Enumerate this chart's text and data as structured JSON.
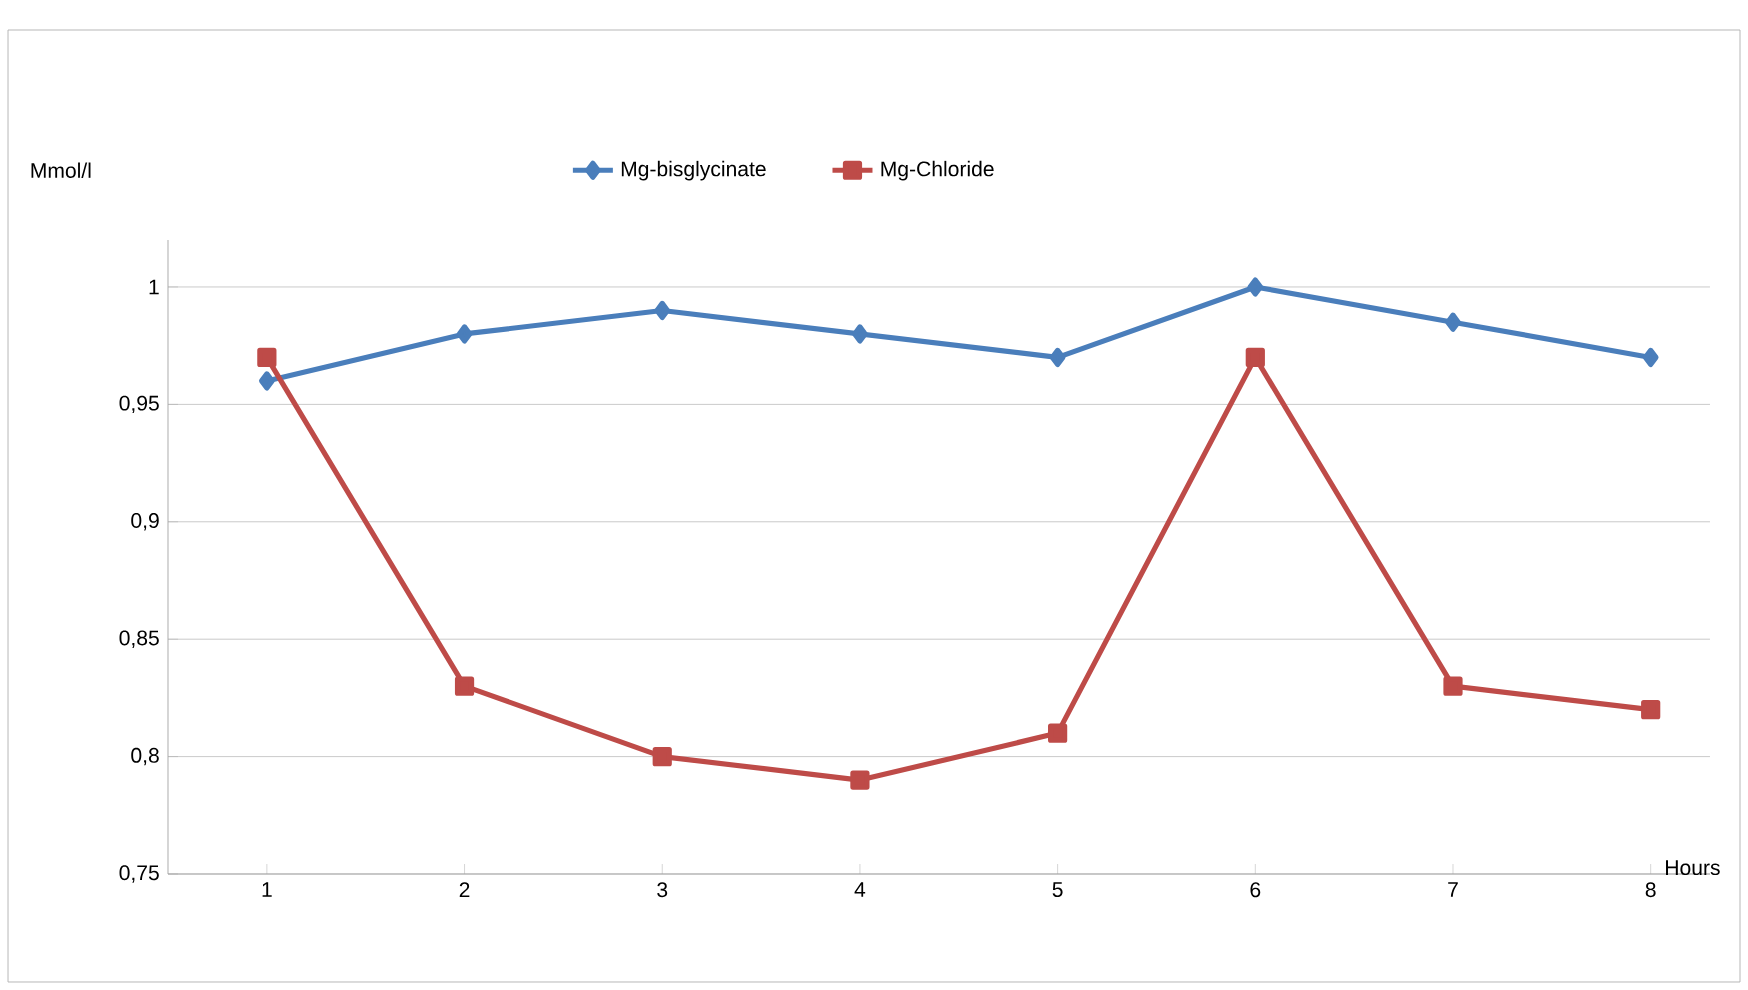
{
  "chart_data": {
    "type": "line",
    "xlabel": "Hours",
    "ylabel": "Mmol/l",
    "categories": [
      "1",
      "2",
      "3",
      "4",
      "5",
      "6",
      "7",
      "8"
    ],
    "series": [
      {
        "name": "Mg-bisglycinate",
        "color": "#4a7ebb",
        "marker": "diamond",
        "values": [
          0.96,
          0.98,
          0.99,
          0.98,
          0.97,
          1.0,
          0.985,
          0.97
        ]
      },
      {
        "name": "Mg-Chloride",
        "color": "#be4b48",
        "marker": "square",
        "values": [
          0.97,
          0.83,
          0.8,
          0.79,
          0.81,
          0.97,
          0.83,
          0.82
        ]
      }
    ],
    "ylim": [
      0.75,
      1.02
    ],
    "yticks": [
      {
        "value": 0.75,
        "label": "0,75"
      },
      {
        "value": 0.8,
        "label": "0,8"
      },
      {
        "value": 0.85,
        "label": "0,85"
      },
      {
        "value": 0.9,
        "label": "0,9"
      },
      {
        "value": 0.95,
        "label": "0,95"
      },
      {
        "value": 1,
        "label": "1"
      }
    ],
    "grid": "y",
    "legend": "top"
  }
}
